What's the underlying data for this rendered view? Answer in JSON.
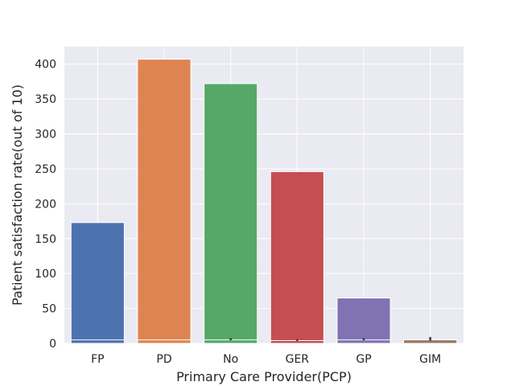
{
  "chart_data": {
    "type": "bar",
    "xlabel": "Primary Care Provider(PCP)",
    "ylabel": "Patient satisfaction rate(out of 10)",
    "ylim": [
      0,
      425
    ],
    "yticks": [
      0,
      50,
      100,
      150,
      200,
      250,
      300,
      350,
      400
    ],
    "grid": true,
    "categories": [
      "FP",
      "PD",
      "No",
      "GER",
      "GP",
      "GIM"
    ],
    "series": [
      {
        "values": [
          173,
          407,
          372,
          246,
          65,
          5
        ]
      },
      {
        "values": [
          5,
          5,
          5,
          4,
          5,
          5
        ]
      }
    ],
    "error_bars": [
      {
        "category": "No",
        "low": 4.5,
        "high": 7.5
      },
      {
        "category": "GER",
        "low": 3.5,
        "high": 6.0
      },
      {
        "category": "GP",
        "low": 4.5,
        "high": 7.5
      },
      {
        "category": "GIM",
        "low": 4.0,
        "high": 9.0
      }
    ],
    "colors": {
      "bars": [
        "#4c72b0",
        "#dd8452",
        "#55a868",
        "#c44e52",
        "#8172b3",
        "#937860"
      ],
      "background": "#eaeaf2",
      "grid": "#ffffff",
      "error": "#3d3d3d"
    }
  }
}
